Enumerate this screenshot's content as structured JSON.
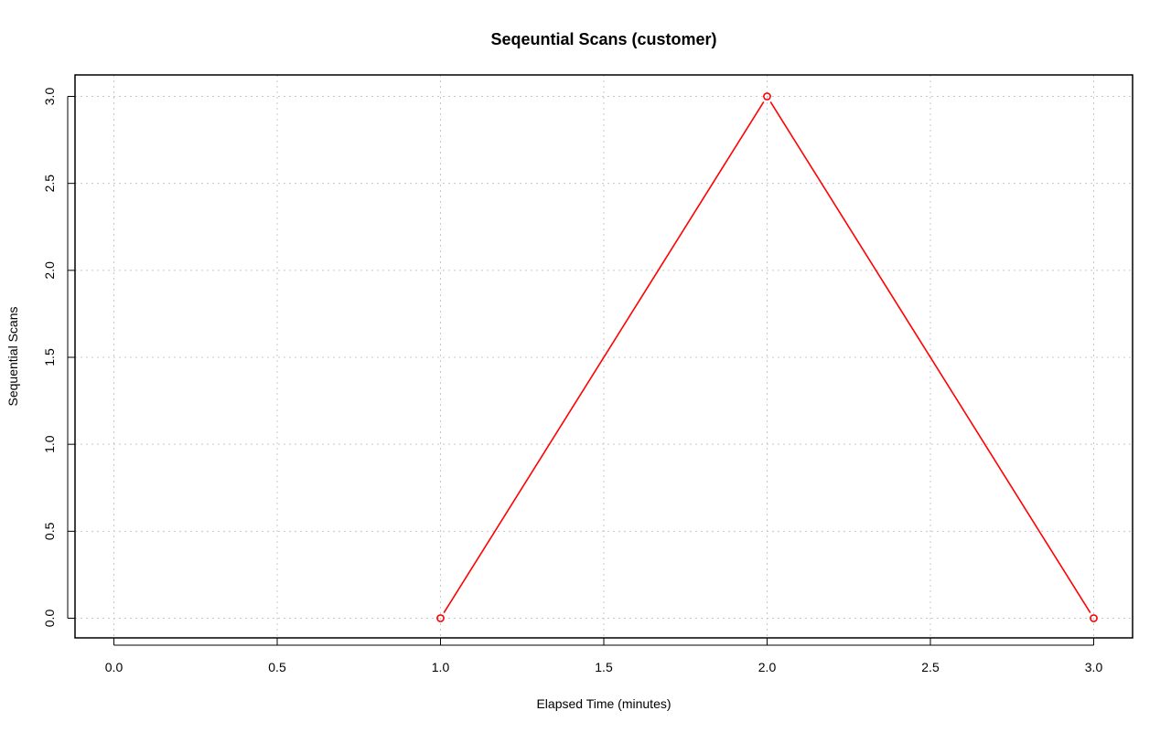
{
  "chart_data": {
    "type": "line",
    "title": "Seqeuntial Scans (customer)",
    "xlabel": "Elapsed Time (minutes)",
    "ylabel": "Sequential Scans",
    "xlim": [
      0,
      3
    ],
    "ylim": [
      0,
      3
    ],
    "xticks": [
      "0.0",
      "0.5",
      "1.0",
      "1.5",
      "2.0",
      "2.5",
      "3.0"
    ],
    "yticks": [
      "0.0",
      "0.5",
      "1.0",
      "1.5",
      "2.0",
      "2.5",
      "3.0"
    ],
    "grid": true,
    "series": [
      {
        "x": [
          1,
          2,
          3
        ],
        "y": [
          0,
          3,
          0
        ],
        "color": "#ff0000",
        "marker": "open-circle"
      }
    ]
  }
}
